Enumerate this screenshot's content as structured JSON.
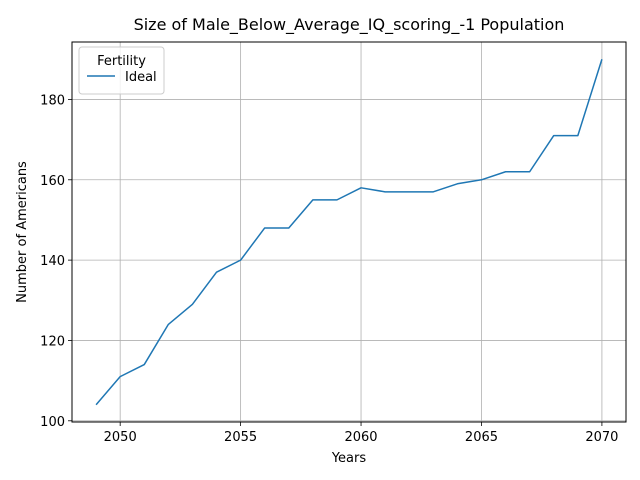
{
  "chart_data": {
    "type": "line",
    "title": "Size of Male_Below_Average_IQ_scoring_-1 Population",
    "xlabel": "Years",
    "ylabel": "Number of Americans",
    "xlim": [
      2048,
      2071
    ],
    "ylim": [
      99.7,
      194.3
    ],
    "xticks": [
      2050,
      2055,
      2060,
      2065,
      2070
    ],
    "yticks": [
      100,
      120,
      140,
      160,
      180
    ],
    "grid": true,
    "legend": {
      "title": "Fertility",
      "placement": "top-left"
    },
    "x": [
      2049,
      2050,
      2051,
      2052,
      2053,
      2054,
      2055,
      2056,
      2057,
      2058,
      2059,
      2060,
      2061,
      2062,
      2063,
      2064,
      2065,
      2066,
      2067,
      2068,
      2069,
      2070
    ],
    "series": [
      {
        "name": "Ideal",
        "color": "#1f77b4",
        "values": [
          104,
          111,
          114,
          124,
          129,
          137,
          140,
          148,
          148,
          155,
          155,
          158,
          157,
          157,
          157,
          159,
          160,
          162,
          162,
          171,
          171,
          190
        ]
      }
    ]
  }
}
